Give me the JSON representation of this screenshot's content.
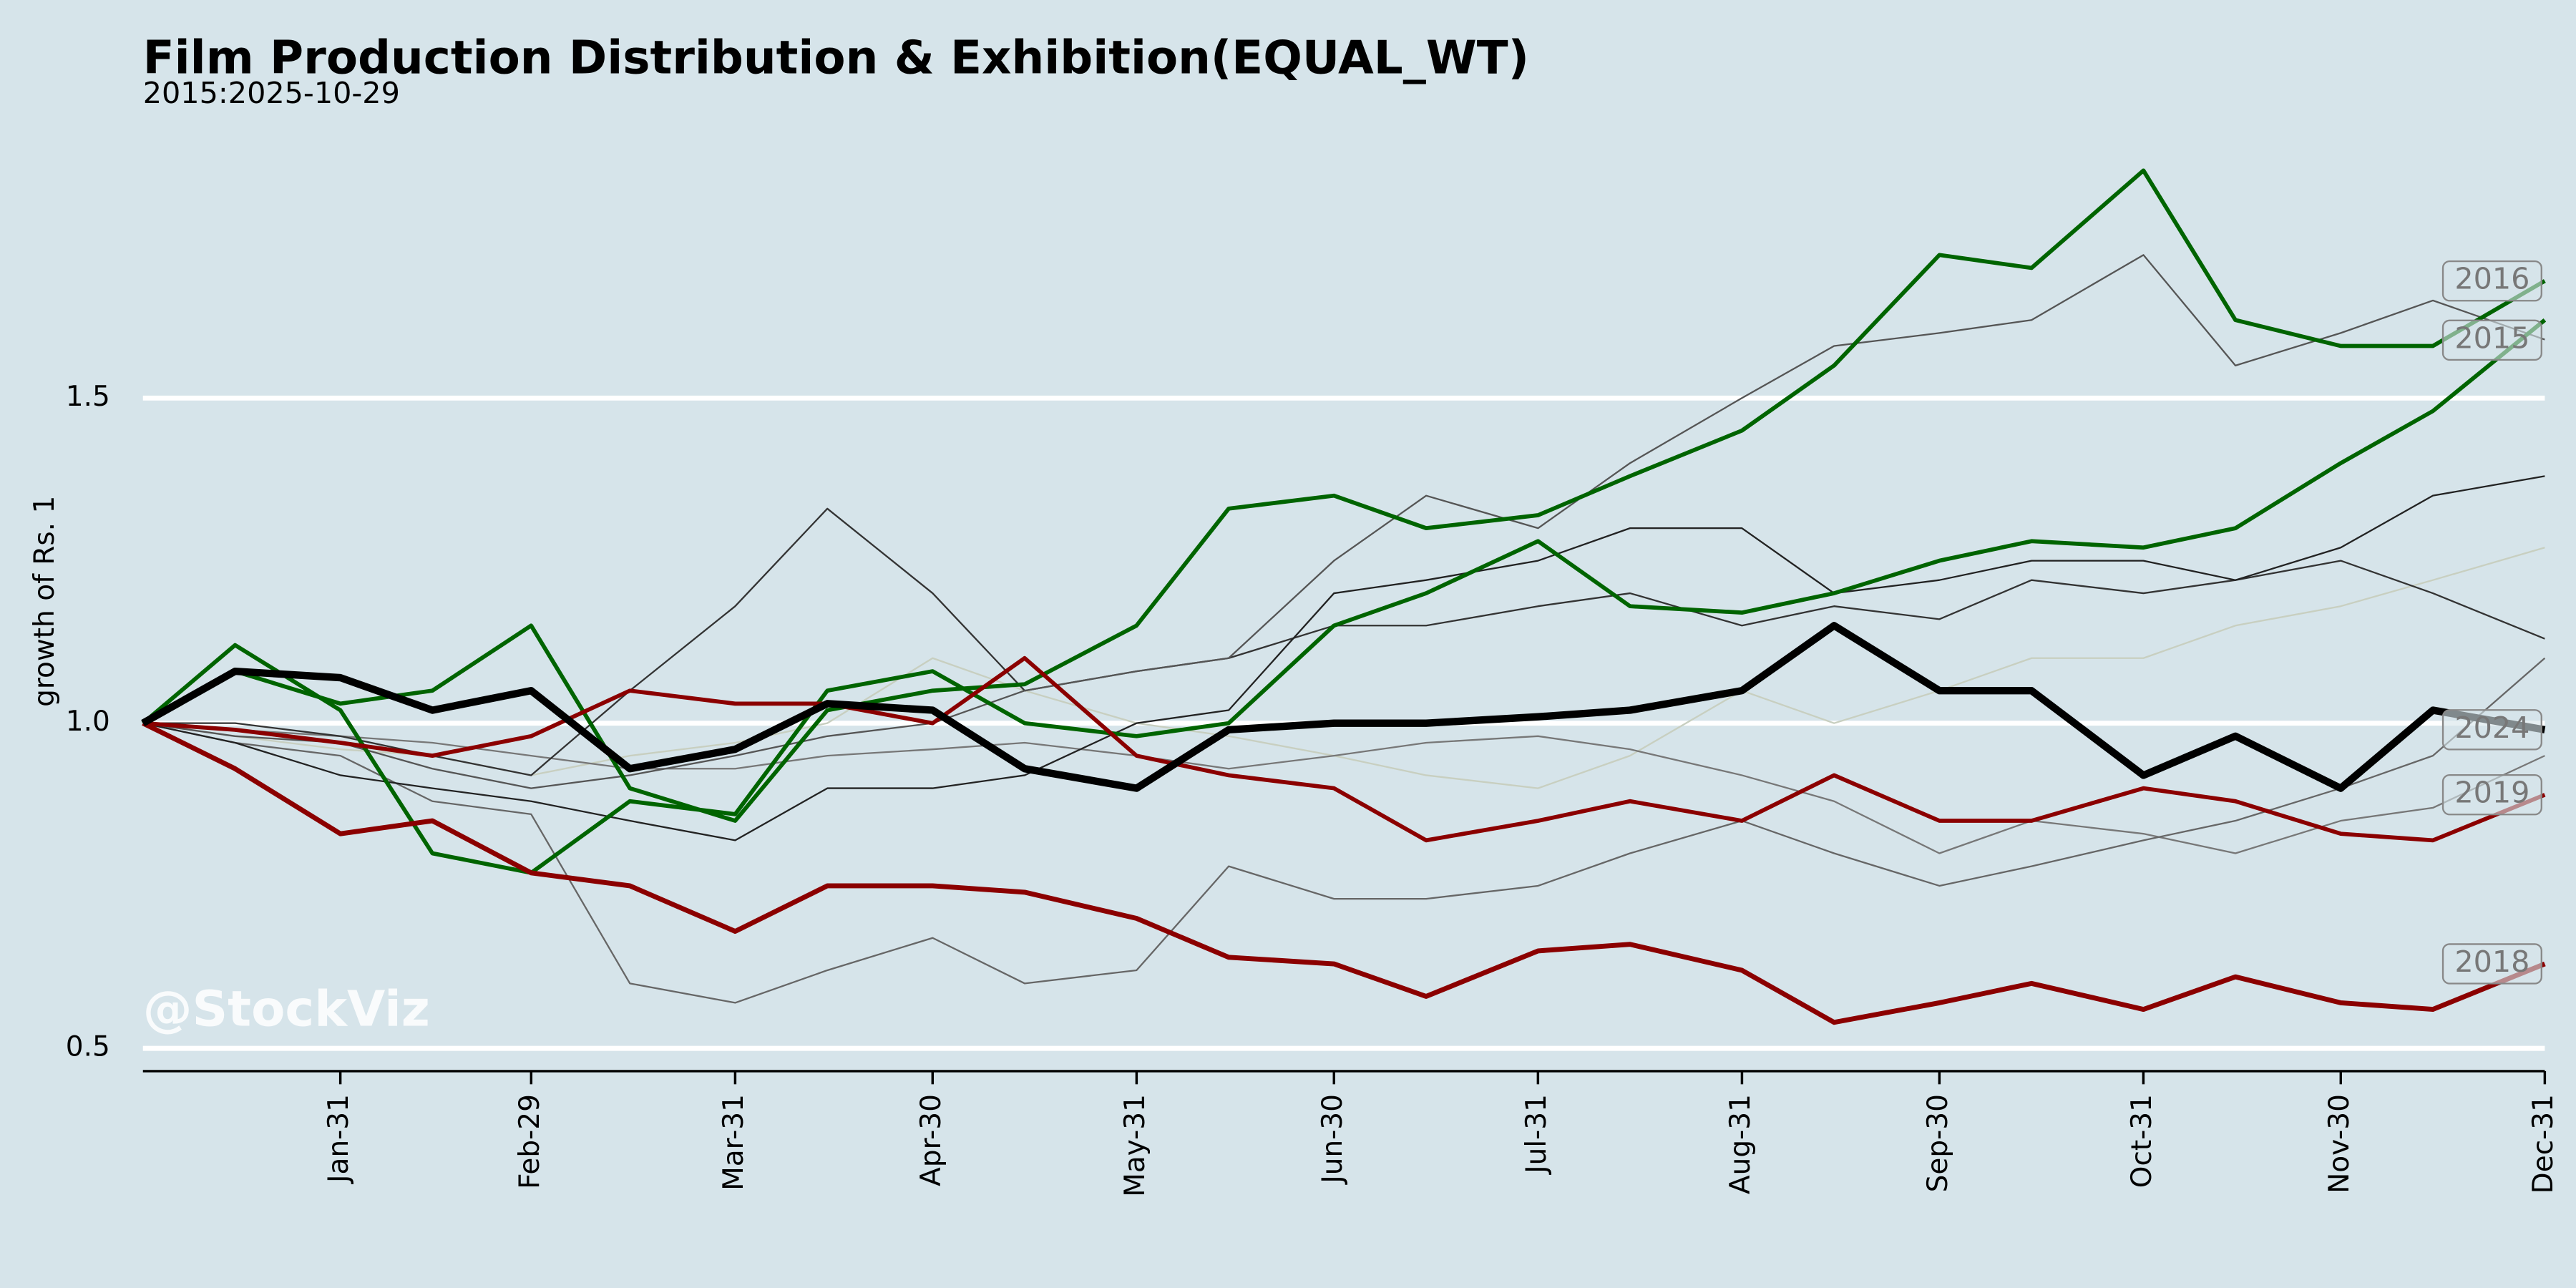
{
  "chart_data": {
    "type": "line",
    "title": "Film Production Distribution & Exhibition(EQUAL_WT)",
    "subtitle": "2015:2025-10-29",
    "y_label": "growth of Rs. 1",
    "watermark": "@StockViz",
    "grid": true,
    "x": [
      1,
      15,
      31,
      45,
      60,
      75,
      91,
      105,
      121,
      135,
      152,
      166,
      182,
      196,
      213,
      227,
      244,
      258,
      274,
      288,
      305,
      319,
      335,
      349,
      366
    ],
    "xlim": [
      1,
      366
    ],
    "xticks": [
      {
        "value": 31,
        "label": "Jan-31"
      },
      {
        "value": 60,
        "label": "Feb-29"
      },
      {
        "value": 91,
        "label": "Mar-31"
      },
      {
        "value": 121,
        "label": "Apr-30"
      },
      {
        "value": 152,
        "label": "May-31"
      },
      {
        "value": 182,
        "label": "Jun-30"
      },
      {
        "value": 213,
        "label": "Jul-31"
      },
      {
        "value": 244,
        "label": "Aug-31"
      },
      {
        "value": 274,
        "label": "Sep-30"
      },
      {
        "value": 305,
        "label": "Oct-31"
      },
      {
        "value": 335,
        "label": "Nov-30"
      },
      {
        "value": 366,
        "label": "Dec-31"
      }
    ],
    "ylim": [
      0.465,
      1.91
    ],
    "yticks": [
      0.5,
      {
        "value": 1,
        "label": "1.0"
      },
      1.5
    ],
    "series": [
      {
        "color": "#c8cfc0",
        "width": 1,
        "values": [
          1.0,
          0.98,
          0.96,
          0.95,
          0.92,
          0.95,
          0.97,
          1.0,
          1.1,
          1.05,
          1.0,
          0.98,
          0.95,
          0.92,
          0.9,
          0.95,
          1.05,
          1.0,
          1.05,
          1.1,
          1.1,
          1.15,
          1.18,
          1.22,
          1.27
        ]
      },
      {
        "color": "#777777",
        "width": 1,
        "values": [
          1.0,
          0.99,
          0.98,
          0.97,
          0.95,
          0.93,
          0.93,
          0.95,
          0.96,
          0.97,
          0.95,
          0.93,
          0.95,
          0.97,
          0.98,
          0.96,
          0.92,
          0.88,
          0.8,
          0.85,
          0.83,
          0.8,
          0.85,
          0.87,
          0.95
        ]
      },
      {
        "color": "#666666",
        "width": 1,
        "values": [
          1.0,
          0.97,
          0.95,
          0.88,
          0.86,
          0.6,
          0.57,
          0.62,
          0.67,
          0.6,
          0.62,
          0.78,
          0.73,
          0.73,
          0.75,
          0.8,
          0.85,
          0.8,
          0.75,
          0.78,
          0.82,
          0.85,
          0.9,
          0.95,
          1.1
        ]
      },
      {
        "color": "#333333",
        "width": 1,
        "values": [
          1.0,
          1.0,
          0.98,
          0.95,
          0.92,
          1.05,
          1.18,
          1.33,
          1.2,
          1.05,
          1.08,
          1.1,
          1.15,
          1.15,
          1.18,
          1.2,
          1.15,
          1.18,
          1.16,
          1.22,
          1.2,
          1.22,
          1.25,
          1.2,
          1.13
        ]
      },
      {
        "color": "#222222",
        "width": 1,
        "values": [
          1.0,
          0.97,
          0.92,
          0.9,
          0.88,
          0.85,
          0.82,
          0.9,
          0.9,
          0.92,
          1.0,
          1.02,
          1.2,
          1.22,
          1.25,
          1.3,
          1.3,
          1.2,
          1.22,
          1.25,
          1.25,
          1.22,
          1.27,
          1.35,
          1.38
        ]
      },
      {
        "name": "2015",
        "color": "#555555",
        "width": 1,
        "values": [
          1.0,
          0.98,
          0.97,
          0.93,
          0.9,
          0.92,
          0.95,
          0.98,
          1.0,
          1.05,
          1.08,
          1.1,
          1.25,
          1.35,
          1.3,
          1.4,
          1.5,
          1.58,
          1.6,
          1.62,
          1.72,
          1.55,
          1.6,
          1.65,
          1.59
        ]
      },
      {
        "color": "#006400",
        "width": 2.5,
        "values": [
          1.0,
          1.12,
          1.02,
          0.8,
          0.77,
          0.88,
          0.86,
          1.05,
          1.08,
          1.0,
          0.98,
          1.0,
          1.15,
          1.2,
          1.28,
          1.18,
          1.17,
          1.2,
          1.25,
          1.28,
          1.27,
          1.3,
          1.4,
          1.48,
          1.62
        ]
      },
      {
        "name": "2016",
        "color": "#006400",
        "width": 2.5,
        "values": [
          1.0,
          1.08,
          1.03,
          1.05,
          1.15,
          0.9,
          0.85,
          1.02,
          1.05,
          1.06,
          1.15,
          1.33,
          1.35,
          1.3,
          1.32,
          1.38,
          1.45,
          1.55,
          1.72,
          1.7,
          1.85,
          1.62,
          1.58,
          1.58,
          1.68
        ]
      },
      {
        "name": "2019",
        "color": "#8b0000",
        "width": 2.5,
        "values": [
          1.0,
          0.99,
          0.97,
          0.95,
          0.98,
          1.05,
          1.03,
          1.03,
          1.0,
          1.1,
          0.95,
          0.92,
          0.9,
          0.82,
          0.85,
          0.88,
          0.85,
          0.92,
          0.85,
          0.85,
          0.9,
          0.88,
          0.83,
          0.82,
          0.89
        ]
      },
      {
        "name": "2018",
        "color": "#8b0000",
        "width": 3,
        "values": [
          1.0,
          0.93,
          0.83,
          0.85,
          0.77,
          0.75,
          0.68,
          0.75,
          0.75,
          0.74,
          0.7,
          0.64,
          0.63,
          0.58,
          0.65,
          0.66,
          0.62,
          0.54,
          0.57,
          0.6,
          0.56,
          0.61,
          0.57,
          0.56,
          0.63
        ]
      },
      {
        "name": "2024",
        "color": "#000000",
        "width": 4.5,
        "values": [
          1.0,
          1.08,
          1.07,
          1.02,
          1.05,
          0.93,
          0.96,
          1.03,
          1.02,
          0.93,
          0.9,
          0.99,
          1.0,
          1.0,
          1.01,
          1.02,
          1.05,
          1.15,
          1.05,
          1.05,
          0.92,
          0.98,
          0.9,
          1.02,
          0.99
        ]
      }
    ]
  }
}
